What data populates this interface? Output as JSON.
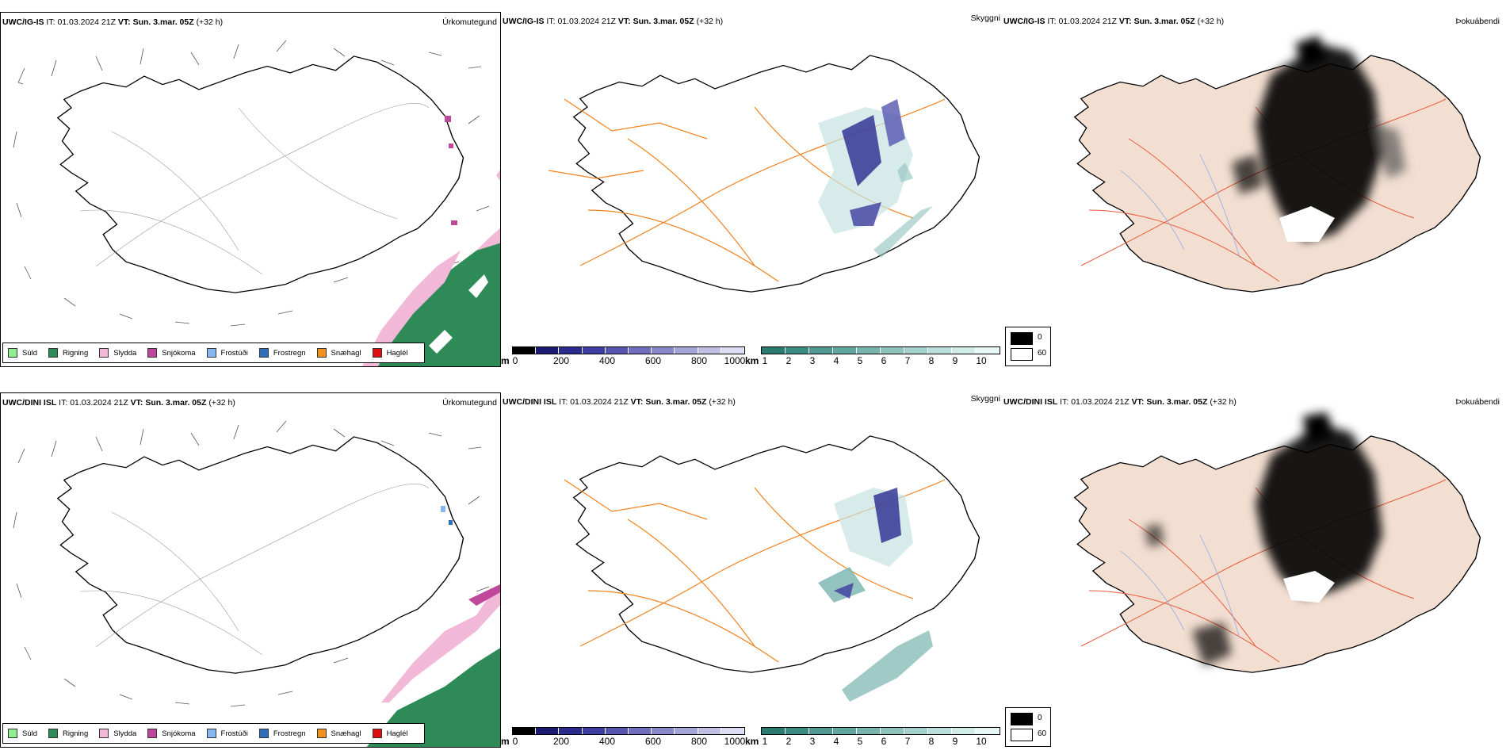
{
  "rows": [
    {
      "model": "UWC/IG-IS",
      "it_label": "IT:",
      "it": "01.03.2024 21Z",
      "vt_label": "VT:",
      "vt": "Sun. 3.mar. 05Z",
      "lead": "(+32 h)"
    },
    {
      "model": "UWC/DINI ISL",
      "it_label": "IT:",
      "it": "01.03.2024 21Z",
      "vt_label": "VT:",
      "vt": "Sun. 3.mar. 05Z",
      "lead": "(+32 h)"
    }
  ],
  "panel_titles": {
    "precip": "Úrkomutegund",
    "visibility": "Skyggni",
    "fog": "Þokuábendi"
  },
  "precip_legend": [
    {
      "label": "Súld",
      "color": "#90ee90"
    },
    {
      "label": "Rigning",
      "color": "#2e8b57"
    },
    {
      "label": "Slydda",
      "color": "#f2b8d8"
    },
    {
      "label": "Snjókoma",
      "color": "#c0489a"
    },
    {
      "label": "Frostúði",
      "color": "#87b8f0"
    },
    {
      "label": "Frostregn",
      "color": "#2f6fb8"
    },
    {
      "label": "Snæhagl",
      "color": "#f0921e"
    },
    {
      "label": "Haglél",
      "color": "#e01010"
    }
  ],
  "cbar_m": {
    "unit": "m",
    "ticks": [
      "0",
      "200",
      "400",
      "600",
      "800",
      "1000"
    ],
    "colors": [
      "#000000",
      "#1a1a6e",
      "#2b2b8e",
      "#3d3da0",
      "#5656b0",
      "#6e6ebc",
      "#8a8acb",
      "#a5a5d8",
      "#c0c0e5",
      "#dcdcf2"
    ]
  },
  "cbar_km": {
    "unit": "km",
    "ticks": [
      "1",
      "2",
      "3",
      "4",
      "5",
      "6",
      "7",
      "8",
      "9",
      "10"
    ],
    "colors": [
      "#2a7a72",
      "#3a8a82",
      "#4e9891",
      "#62a6a0",
      "#78b4ae",
      "#8ec2bd",
      "#a4d0cb",
      "#badeda",
      "#d0ebe8",
      "#e6f6f4"
    ]
  },
  "fog_legend": [
    {
      "label": "0",
      "color": "#000000"
    },
    {
      "label": "60",
      "color": "#ffffff"
    }
  ]
}
